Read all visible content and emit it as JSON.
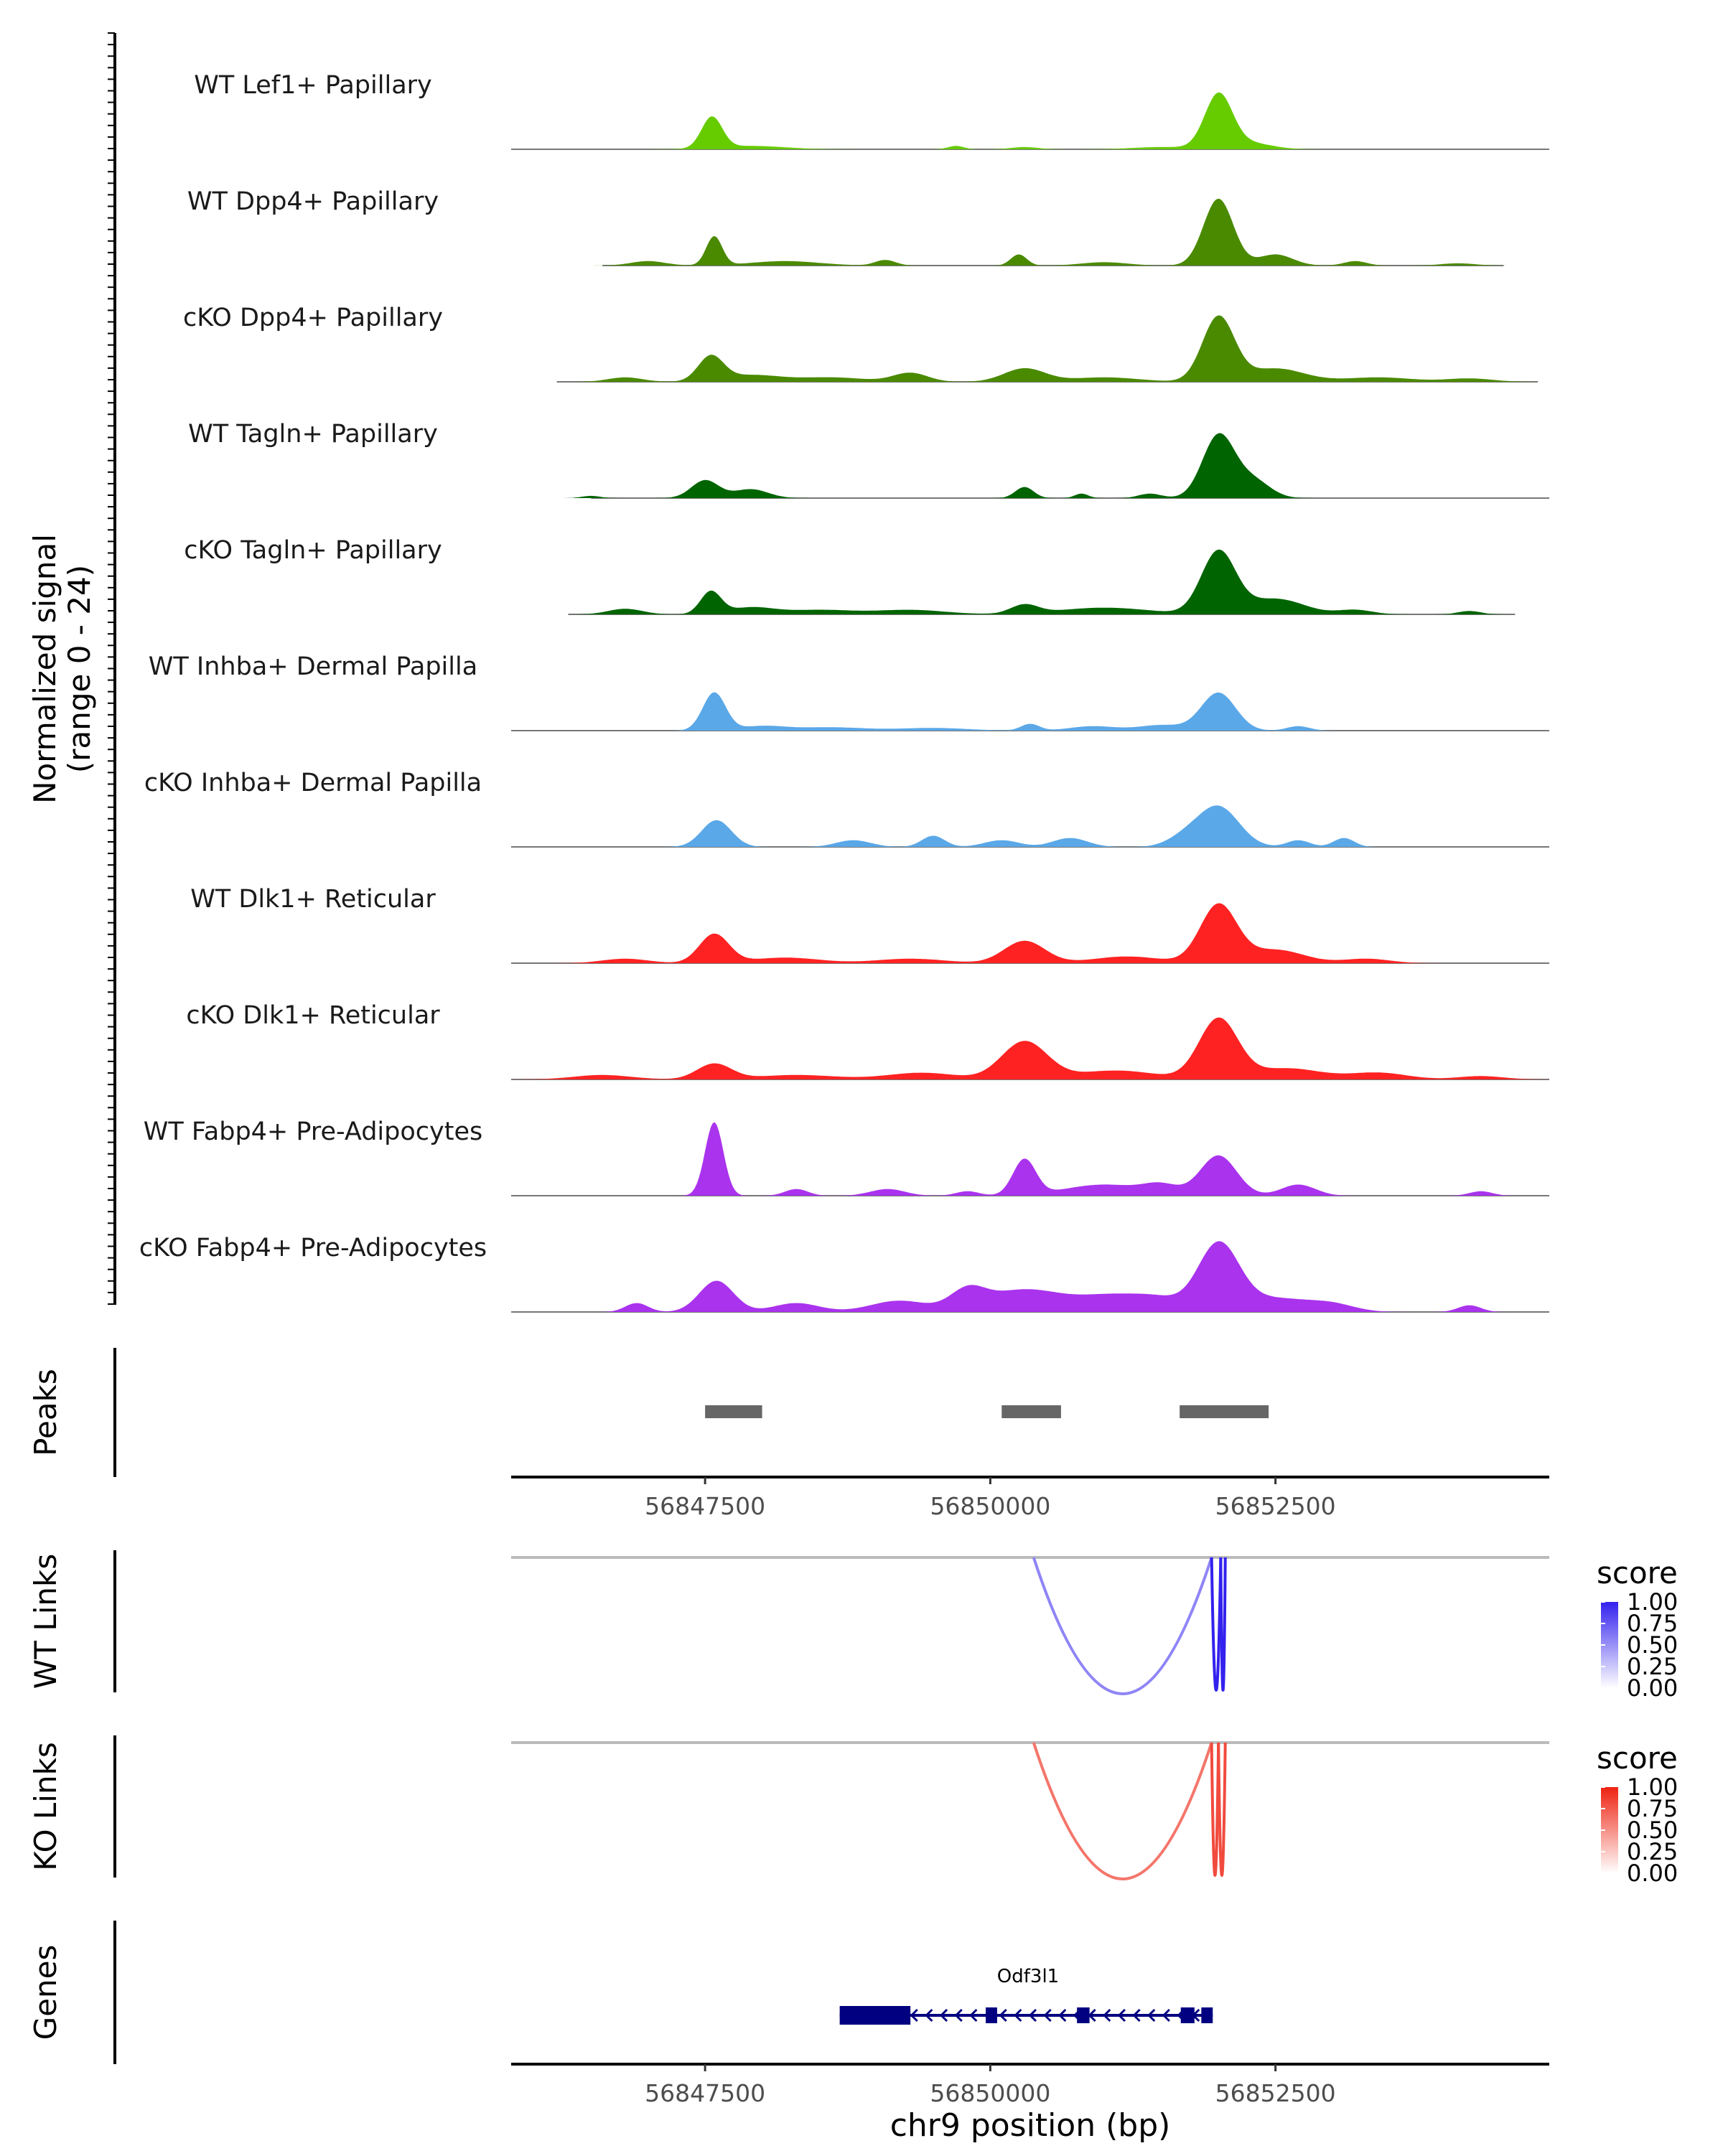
{
  "chart_data": {
    "type": "coverage_plot",
    "region": {
      "chromosome": "chr9",
      "start": 56845800,
      "end": 56854900
    },
    "coverage": {
      "ylabel_line1": "Normalized signal",
      "ylabel_line2": "(range 0 - 24)",
      "ylim": [
        0,
        24
      ],
      "tracks": [
        {
          "name": "WT Lef1+ Papillary",
          "color": "#66cc00",
          "baseline": [
            56845800,
            56854900
          ],
          "peaks": [
            [
              56847560,
              14,
              90
            ],
            [
              56847900,
              1.5,
              300
            ],
            [
              56849700,
              1.5,
              70
            ],
            [
              56850300,
              1,
              120
            ],
            [
              56851500,
              1,
              250
            ],
            [
              56852000,
              24,
              120
            ],
            [
              56852250,
              3,
              200
            ]
          ]
        },
        {
          "name": "WT Dpp4+ Papillary",
          "color": "#4a8a00",
          "baseline": [
            56846600,
            56854500
          ],
          "peaks": [
            [
              56847000,
              2,
              150
            ],
            [
              56847580,
              13,
              70
            ],
            [
              56848200,
              2,
              300
            ],
            [
              56849080,
              2.5,
              90
            ],
            [
              56850250,
              5,
              70
            ],
            [
              56851000,
              1.5,
              200
            ],
            [
              56852000,
              30,
              130
            ],
            [
              56852500,
              5,
              150
            ],
            [
              56853200,
              2,
              100
            ],
            [
              56854100,
              1,
              150
            ]
          ]
        },
        {
          "name": "cKO Dpp4+ Papillary",
          "color": "#4a8a00",
          "baseline": [
            56846200,
            56854800
          ],
          "peaks": [
            [
              56846800,
              2,
              150
            ],
            [
              56847550,
              11,
              110
            ],
            [
              56847900,
              3,
              250
            ],
            [
              56848600,
              2,
              300
            ],
            [
              56849300,
              4,
              150
            ],
            [
              56850300,
              6,
              180
            ],
            [
              56851000,
              2,
              300
            ],
            [
              56852000,
              29,
              140
            ],
            [
              56852500,
              6,
              250
            ],
            [
              56853400,
              2,
              300
            ],
            [
              56854200,
              1.5,
              200
            ]
          ]
        },
        {
          "name": "WT Tagln+ Papillary",
          "color": "#006400",
          "baseline": [
            56846500,
            56854900
          ],
          "peaks": [
            [
              56846500,
              1,
              80
            ],
            [
              56847500,
              8,
              120
            ],
            [
              56847900,
              4,
              150
            ],
            [
              56850300,
              5,
              80
            ],
            [
              56850800,
              2,
              60
            ],
            [
              56851400,
              2,
              100
            ],
            [
              56852000,
              28,
              140
            ],
            [
              56852300,
              8,
              150
            ]
          ]
        },
        {
          "name": "cKO Tagln+ Papillary",
          "color": "#006400",
          "baseline": [
            56846300,
            56854600
          ],
          "peaks": [
            [
              56846800,
              2.5,
              150
            ],
            [
              56847550,
              10,
              90
            ],
            [
              56847900,
              3,
              200
            ],
            [
              56848500,
              2,
              300
            ],
            [
              56849300,
              2,
              300
            ],
            [
              56850300,
              4,
              120
            ],
            [
              56851000,
              3,
              400
            ],
            [
              56852000,
              28,
              150
            ],
            [
              56852500,
              7,
              250
            ],
            [
              56853200,
              2,
              150
            ],
            [
              56854200,
              1.5,
              100
            ]
          ]
        },
        {
          "name": "WT Inhba+ Dermal Papilla",
          "color": "#5aa8e8",
          "baseline": [
            56845800,
            56854900
          ],
          "peaks": [
            [
              56847580,
              17,
              100
            ],
            [
              56848000,
              2,
              200
            ],
            [
              56848600,
              1.5,
              300
            ],
            [
              56849500,
              1.2,
              300
            ],
            [
              56850350,
              3,
              80
            ],
            [
              56850900,
              2,
              200
            ],
            [
              56851500,
              2.5,
              200
            ],
            [
              56852000,
              17,
              150
            ],
            [
              56852700,
              2,
              100
            ]
          ]
        },
        {
          "name": "cKO Inhba+ Dermal Papilla",
          "color": "#5aa8e8",
          "baseline": [
            56845800,
            56854900
          ],
          "peaks": [
            [
              56847600,
              12,
              130
            ],
            [
              56848800,
              3,
              150
            ],
            [
              56849500,
              5,
              100
            ],
            [
              56850100,
              3,
              150
            ],
            [
              56850700,
              4,
              150
            ],
            [
              56851700,
              4,
              150
            ],
            [
              56852000,
              18,
              180
            ],
            [
              56852700,
              3,
              100
            ],
            [
              56853100,
              4,
              90
            ]
          ]
        },
        {
          "name": "WT Dlk1+ Reticular",
          "color": "#ff2222",
          "baseline": [
            56845800,
            56854900
          ],
          "peaks": [
            [
              56846800,
              2,
              200
            ],
            [
              56847580,
              13,
              130
            ],
            [
              56848200,
              2.5,
              300
            ],
            [
              56849300,
              2,
              300
            ],
            [
              56850300,
              10,
              180
            ],
            [
              56851200,
              3,
              300
            ],
            [
              56852000,
              26,
              160
            ],
            [
              56852500,
              6,
              250
            ],
            [
              56853300,
              2,
              200
            ]
          ]
        },
        {
          "name": "cKO Dlk1+ Reticular",
          "color": "#ff2222",
          "baseline": [
            56845800,
            56854900
          ],
          "peaks": [
            [
              56846600,
              2,
              250
            ],
            [
              56847580,
              7,
              150
            ],
            [
              56848300,
              2,
              350
            ],
            [
              56849400,
              3,
              300
            ],
            [
              56850300,
              17,
              200
            ],
            [
              56851100,
              4,
              350
            ],
            [
              56852000,
              27,
              170
            ],
            [
              56852600,
              5,
              300
            ],
            [
              56853400,
              3,
              250
            ],
            [
              56854300,
              1.5,
              200
            ]
          ]
        },
        {
          "name": "WT Fabp4+ Pre-Adipocytes",
          "color": "#aa33ee",
          "baseline": [
            56845800,
            56854900
          ],
          "peaks": [
            [
              56847580,
              33,
              80
            ],
            [
              56848300,
              3,
              100
            ],
            [
              56849100,
              3,
              150
            ],
            [
              56849800,
              2,
              100
            ],
            [
              56850300,
              16,
              100
            ],
            [
              56851000,
              5,
              350
            ],
            [
              56851500,
              4,
              150
            ],
            [
              56852000,
              18,
              160
            ],
            [
              56852700,
              5,
              150
            ],
            [
              56854300,
              2,
              100
            ]
          ]
        },
        {
          "name": "cKO Fabp4+ Pre-Adipocytes",
          "color": "#aa33ee",
          "baseline": [
            56845800,
            56854900
          ],
          "peaks": [
            [
              56846900,
              4,
              100
            ],
            [
              56847600,
              14,
              150
            ],
            [
              56848300,
              4,
              200
            ],
            [
              56849200,
              5,
              250
            ],
            [
              56849800,
              8,
              150
            ],
            [
              56850300,
              10,
              350
            ],
            [
              56851100,
              7,
              300
            ],
            [
              56851500,
              4,
              200
            ],
            [
              56852000,
              30,
              180
            ],
            [
              56852500,
              6,
              300
            ],
            [
              56853000,
              3,
              200
            ],
            [
              56854200,
              3,
              100
            ]
          ]
        }
      ]
    },
    "peaks_track": {
      "label": "Peaks",
      "regions": [
        [
          56847500,
          56848000
        ],
        [
          56850100,
          56850620
        ],
        [
          56851660,
          56852440
        ]
      ],
      "color": "#666666"
    },
    "x_axis": {
      "ticks": [
        56847500,
        56850000,
        56852500
      ],
      "tick_labels": [
        "56847500",
        "56850000",
        "56852500"
      ]
    },
    "link_tracks": [
      {
        "label": "WT Links",
        "links": [
          {
            "start": 56850380,
            "end": 56851940,
            "score": 0.4
          },
          {
            "start": 56851940,
            "end": 56852020,
            "score": 1.0
          },
          {
            "start": 56852020,
            "end": 56852060,
            "score": 1.0
          }
        ],
        "legend": {
          "title": "score",
          "breaks": [
            "1.00",
            "0.75",
            "0.50",
            "0.25",
            "0.00"
          ],
          "high_color": "#3322ee",
          "low_color": "#ffffff"
        }
      },
      {
        "label": "KO Links",
        "links": [
          {
            "start": 56850380,
            "end": 56851940,
            "score": 0.5
          },
          {
            "start": 56851940,
            "end": 56852000,
            "score": 0.75
          },
          {
            "start": 56852000,
            "end": 56852060,
            "score": 0.75
          }
        ],
        "legend": {
          "title": "score",
          "breaks": [
            "1.00",
            "0.75",
            "0.50",
            "0.25",
            "0.00"
          ],
          "high_color": "#ee2211",
          "low_color": "#ffffff"
        }
      }
    ],
    "genes_track": {
      "label": "Genes",
      "gene": {
        "name": "Odf3l1",
        "strand": "-",
        "start": 56848680,
        "end": 56851950,
        "exons": [
          [
            56848680,
            56849300
          ],
          [
            56849960,
            56850060
          ],
          [
            56850760,
            56850870
          ],
          [
            56851670,
            56851790
          ],
          [
            56851850,
            56851950
          ]
        ],
        "color": "#000080"
      }
    },
    "xlabel": "chr9 position (bp)"
  }
}
